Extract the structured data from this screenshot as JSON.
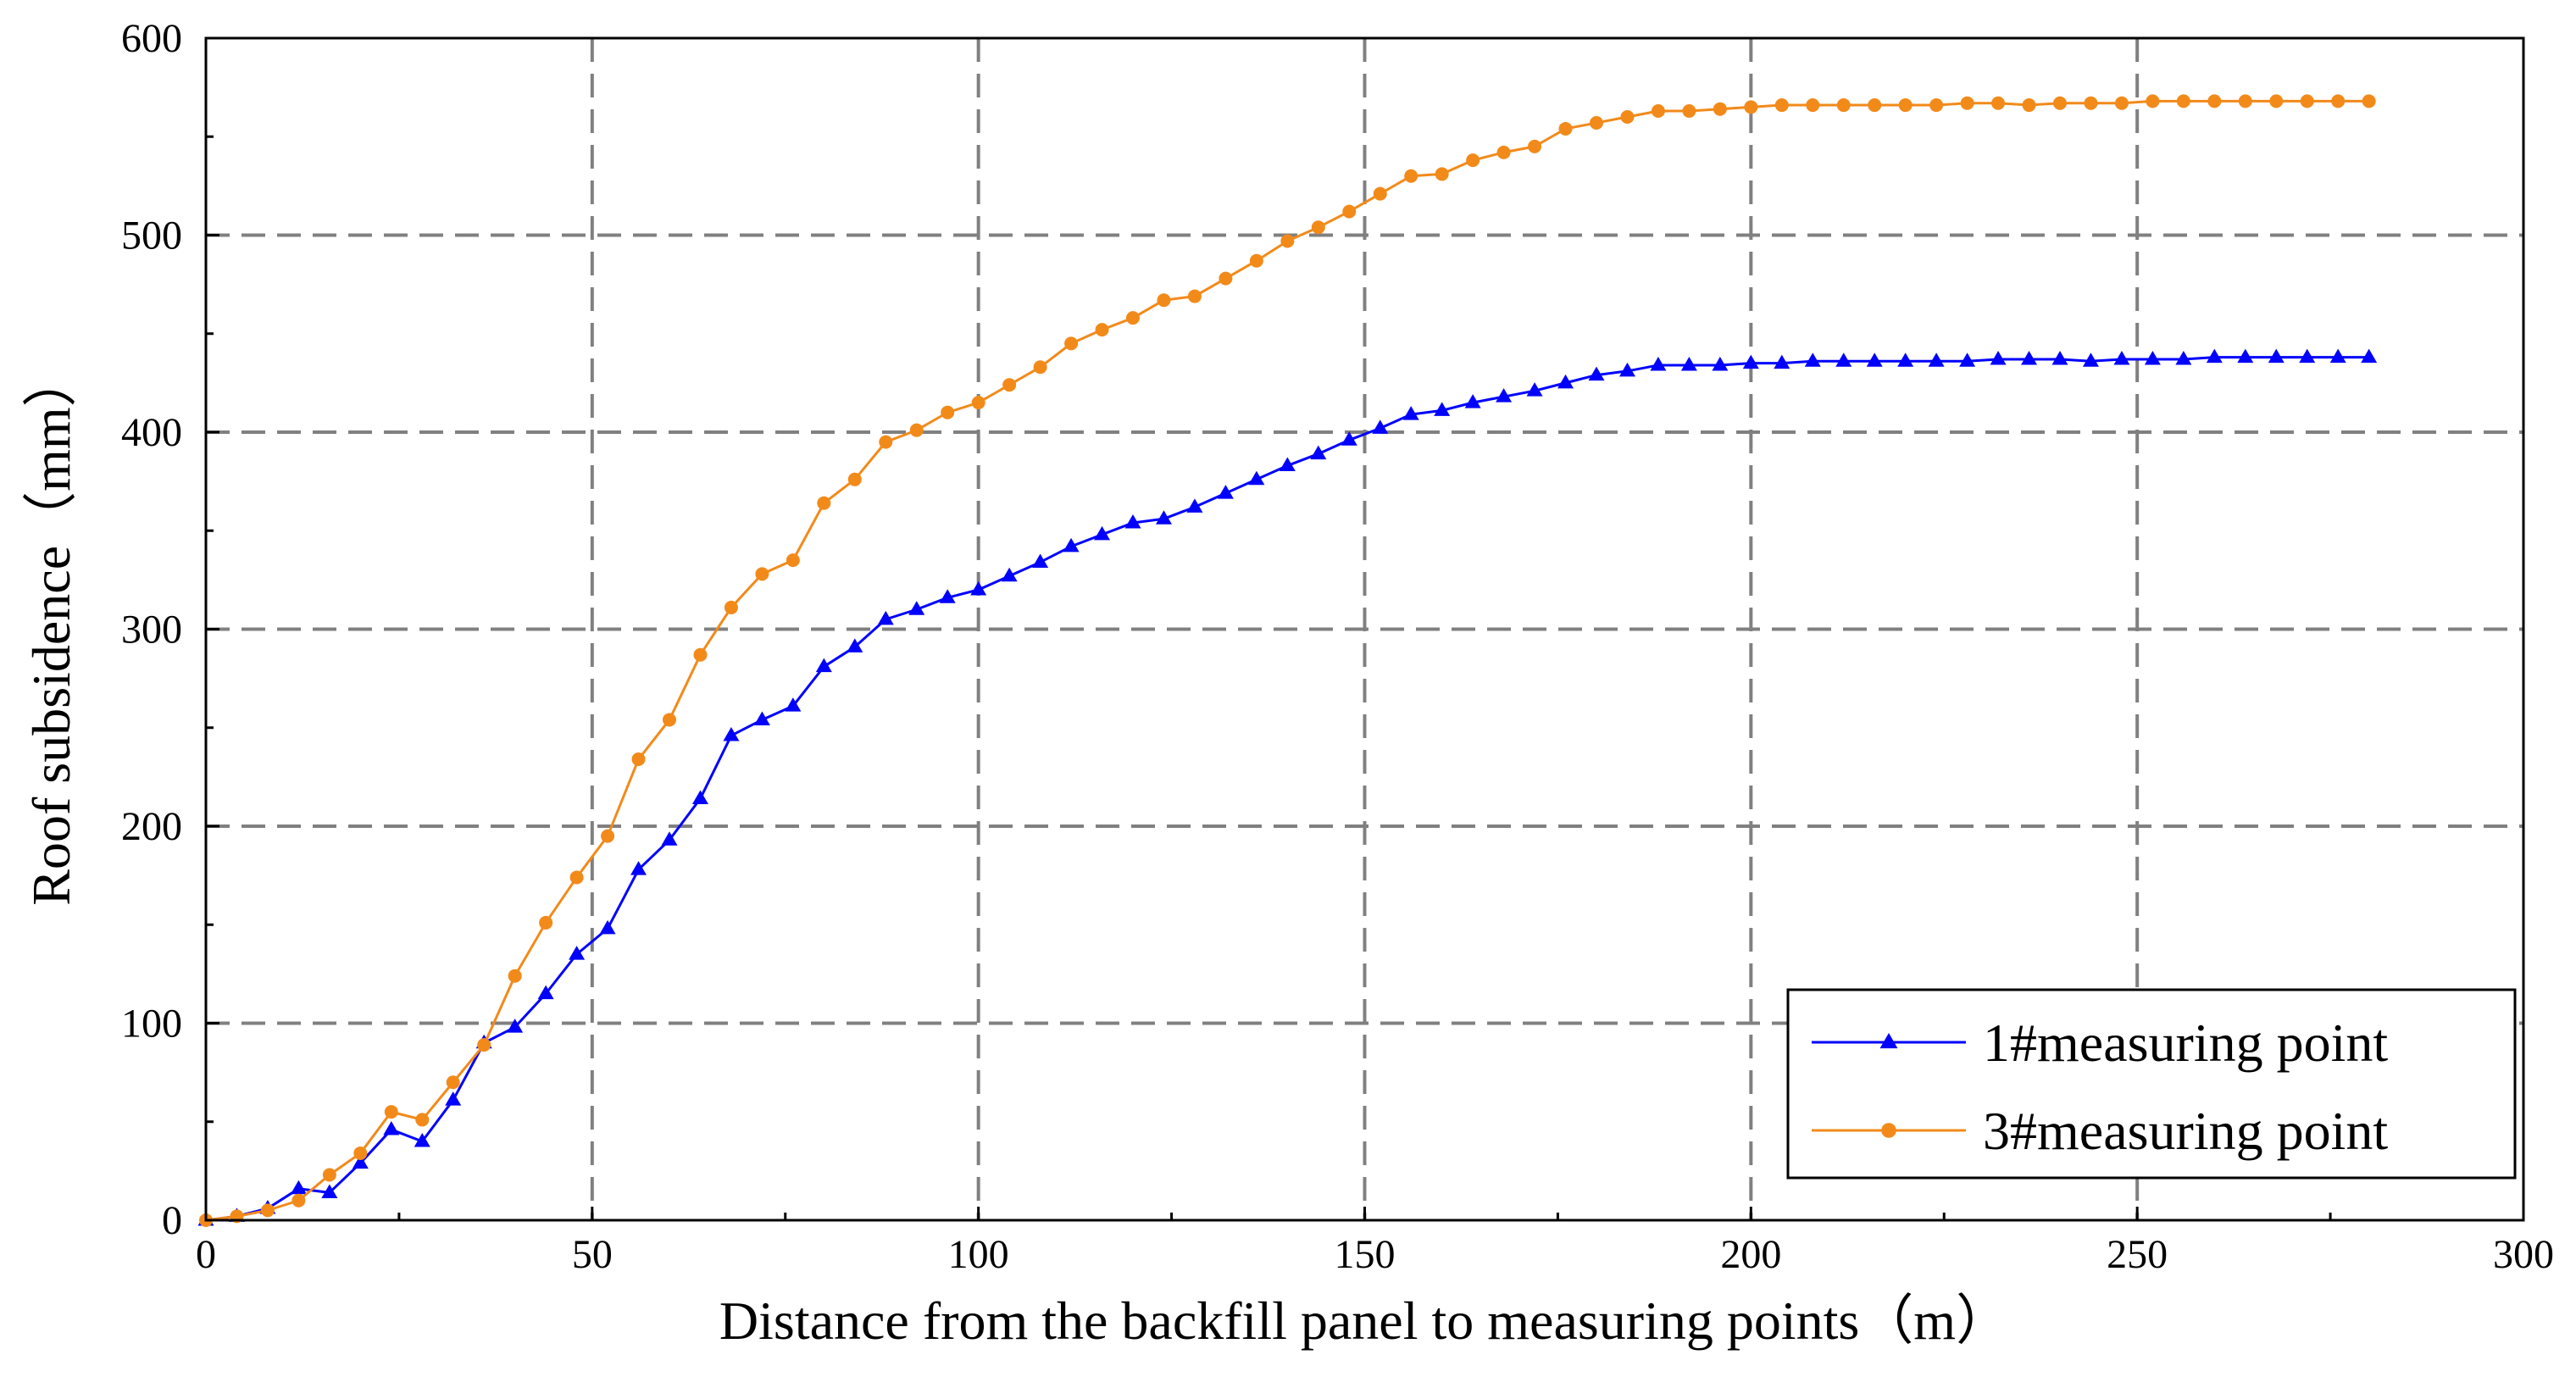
{
  "chart_data": {
    "type": "line",
    "title": "",
    "xlabel": "Distance from the backfill panel to measuring points（m）",
    "ylabel": "Roof subsidence（mm）",
    "xlim": [
      0,
      300
    ],
    "ylim": [
      0,
      600
    ],
    "xticks": [
      0,
      50,
      100,
      150,
      200,
      250,
      300
    ],
    "yticks": [
      0,
      100,
      200,
      300,
      400,
      500,
      600
    ],
    "grid": true,
    "legend_position": "bottom-right",
    "series": [
      {
        "name": "1#measuring point",
        "color": "#0000ff",
        "marker": "triangle",
        "x": [
          0,
          4,
          8,
          12,
          16,
          20,
          24,
          28,
          32,
          36,
          40,
          44,
          48,
          52,
          56,
          60,
          64,
          68,
          72,
          76,
          80,
          84,
          88,
          92,
          96,
          100,
          104,
          108,
          112,
          116,
          120,
          124,
          128,
          132,
          136,
          140,
          144,
          148,
          152,
          156,
          160,
          164,
          168,
          172,
          176,
          180,
          184,
          188,
          192,
          196,
          200,
          204,
          208,
          212,
          216,
          220,
          224,
          228,
          232,
          236,
          240,
          244,
          248,
          252,
          256,
          260,
          264,
          268,
          272,
          276,
          280
        ],
        "y": [
          0,
          2,
          6,
          16,
          14,
          29,
          46,
          40,
          61,
          90,
          98,
          115,
          135,
          148,
          178,
          193,
          214,
          246,
          254,
          261,
          281,
          291,
          305,
          310,
          316,
          320,
          327,
          334,
          342,
          348,
          354,
          356,
          362,
          369,
          376,
          383,
          389,
          396,
          402,
          409,
          411,
          415,
          418,
          421,
          425,
          429,
          431,
          434,
          434,
          434,
          435,
          435,
          436,
          436,
          436,
          436,
          436,
          436,
          437,
          437,
          437,
          436,
          437,
          437,
          437,
          438,
          438,
          438,
          438,
          438,
          438
        ]
      },
      {
        "name": "3#measuring point",
        "color": "#f28a1a",
        "marker": "circle",
        "x": [
          0,
          4,
          8,
          12,
          16,
          20,
          24,
          28,
          32,
          36,
          40,
          44,
          48,
          52,
          56,
          60,
          64,
          68,
          72,
          76,
          80,
          84,
          88,
          92,
          96,
          100,
          104,
          108,
          112,
          116,
          120,
          124,
          128,
          132,
          136,
          140,
          144,
          148,
          152,
          156,
          160,
          164,
          168,
          172,
          176,
          180,
          184,
          188,
          192,
          196,
          200,
          204,
          208,
          212,
          216,
          220,
          224,
          228,
          232,
          236,
          240,
          244,
          248,
          252,
          256,
          260,
          264,
          268,
          272,
          276,
          280
        ],
        "y": [
          0,
          2,
          5,
          10,
          23,
          34,
          55,
          51,
          70,
          89,
          124,
          151,
          174,
          195,
          234,
          254,
          287,
          311,
          328,
          335,
          364,
          376,
          395,
          401,
          410,
          415,
          424,
          433,
          445,
          452,
          458,
          467,
          469,
          478,
          487,
          497,
          504,
          512,
          521,
          530,
          531,
          538,
          542,
          545,
          554,
          557,
          560,
          563,
          563,
          564,
          565,
          566,
          566,
          566,
          566,
          566,
          566,
          567,
          567,
          566,
          567,
          567,
          567,
          568,
          568,
          568,
          568,
          568,
          568,
          568,
          568
        ]
      }
    ]
  }
}
